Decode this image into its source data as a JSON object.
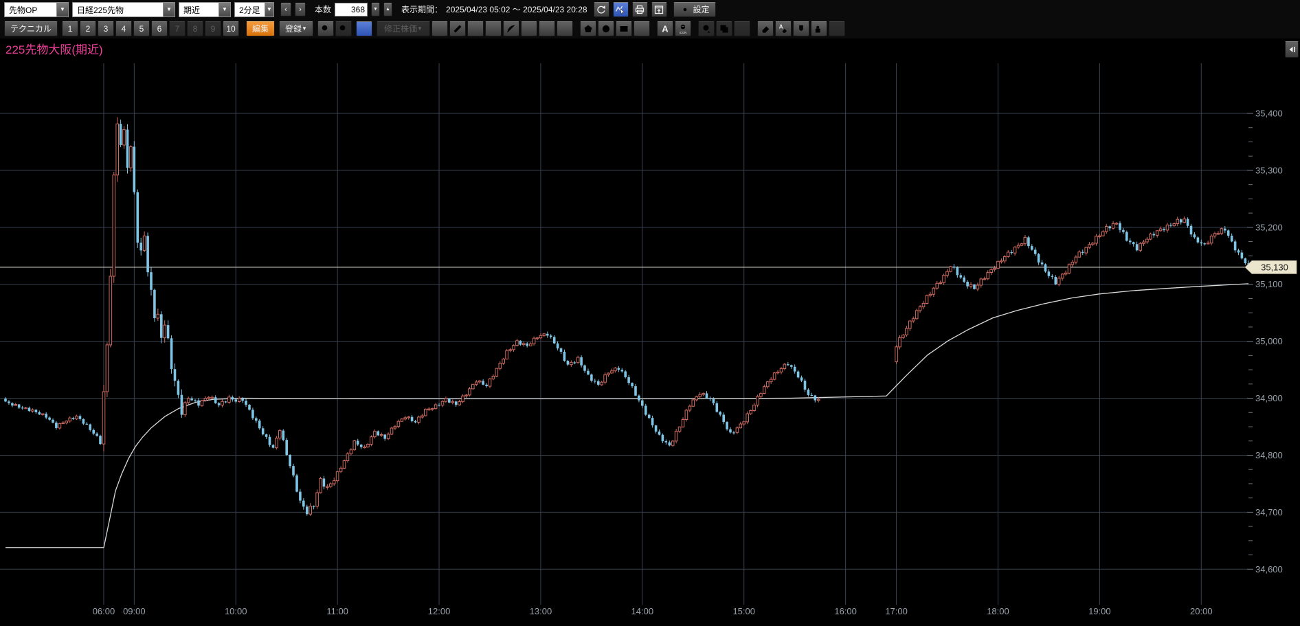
{
  "page": {
    "title": "225先物大阪(期近)"
  },
  "toolbar_top": {
    "dropdowns": [
      {
        "name": "category-dropdown",
        "value": "先物OP"
      },
      {
        "name": "instrument-dropdown",
        "value": "日経225先物"
      },
      {
        "name": "contract-dropdown",
        "value": "期近"
      },
      {
        "name": "timeframe-dropdown",
        "value": "2分足"
      }
    ],
    "prev": "‹",
    "next": "›",
    "bars_label": "本数",
    "bars_value": "368",
    "period_label": "表示期間：",
    "period_value": "2025/04/23 05:02 ～ 2025/04/23 20:28",
    "icons": [
      {
        "name": "undo-icon",
        "active": false
      },
      {
        "name": "chart-cursor-icon",
        "active": true
      },
      {
        "name": "printer-icon",
        "active": false
      },
      {
        "name": "popup-window-icon",
        "active": false
      }
    ],
    "settings_label": "設定"
  },
  "toolbar_tools": {
    "technical_label": "テクニカル",
    "presets": [
      {
        "label": "1",
        "enabled": true
      },
      {
        "label": "2",
        "enabled": true
      },
      {
        "label": "3",
        "enabled": true
      },
      {
        "label": "4",
        "enabled": true
      },
      {
        "label": "5",
        "enabled": true
      },
      {
        "label": "6",
        "enabled": true
      },
      {
        "label": "7",
        "enabled": false
      },
      {
        "label": "8",
        "enabled": false
      },
      {
        "label": "9",
        "enabled": false
      },
      {
        "label": "10",
        "enabled": true
      }
    ],
    "edit_label": "編集",
    "register_label": "登録",
    "zoom_icons": [
      {
        "name": "zoom-in-icon",
        "enabled": true
      },
      {
        "name": "zoom-out-icon",
        "enabled": false
      }
    ],
    "crosshair_name": "crosshair-icon",
    "adjusted_price_label": "修正株価",
    "draw_tools": [
      {
        "name": "trendline-icon",
        "enabled": true,
        "gap": false
      },
      {
        "name": "ruler-icon",
        "enabled": true,
        "gap": false
      },
      {
        "name": "parallel-lines-icon",
        "enabled": true,
        "gap": false
      },
      {
        "name": "multi-lines-icon",
        "enabled": true,
        "gap": false
      },
      {
        "name": "fibonacci-arc-icon",
        "enabled": true,
        "gap": false
      },
      {
        "name": "fibonacci-fan-icon",
        "enabled": true,
        "gap": false
      },
      {
        "name": "time-zones-icon",
        "enabled": true,
        "gap": false
      },
      {
        "name": "speed-lines-icon",
        "enabled": true,
        "gap": false
      },
      {
        "name": "pentagon-icon",
        "enabled": true,
        "gap": true
      },
      {
        "name": "ellipse-icon",
        "enabled": true,
        "gap": false
      },
      {
        "name": "rectangle-icon",
        "enabled": true,
        "gap": false
      },
      {
        "name": "horizontal-line-icon",
        "enabled": true,
        "gap": false
      },
      {
        "name": "text-icon",
        "enabled": true,
        "gap": true
      },
      {
        "name": "emoticon-icon",
        "enabled": true,
        "gap": false
      },
      {
        "name": "history-icon",
        "enabled": false,
        "gap": true
      },
      {
        "name": "copy-icon",
        "enabled": false,
        "gap": false
      },
      {
        "name": "drag-icon",
        "enabled": false,
        "gap": false
      },
      {
        "name": "eraser-icon",
        "enabled": true,
        "gap": true
      },
      {
        "name": "eraser-all-icon",
        "enabled": true,
        "gap": false
      },
      {
        "name": "magnet-icon",
        "enabled": true,
        "gap": false
      },
      {
        "name": "lock-edit-icon",
        "enabled": true,
        "gap": false
      },
      {
        "name": "tool-settings-icon",
        "enabled": false,
        "gap": false
      }
    ]
  },
  "chart_data": {
    "type": "candlestick",
    "title": "225先物大阪(期近)",
    "instrument": "日経225先物 期近",
    "timeframe": "2分足",
    "bars_count": 368,
    "period_start": "2025/04/23 05:02",
    "period_end": "2025/04/23 20:28",
    "current_price": 35130,
    "current_price_label": "35,130",
    "y_axis": {
      "min": 34600,
      "max": 35400,
      "step": 100,
      "minor_step": 25,
      "labels": [
        "35,400",
        "35,300",
        "35,200",
        "35,100",
        "35,000",
        "34,900",
        "34,800",
        "34,700",
        "34,600"
      ]
    },
    "x_axis": {
      "ticks": [
        {
          "label": "06:00",
          "bar": 29
        },
        {
          "label": "09:00",
          "bar": 38
        },
        {
          "label": "10:00",
          "bar": 68
        },
        {
          "label": "11:00",
          "bar": 98
        },
        {
          "label": "12:00",
          "bar": 128
        },
        {
          "label": "13:00",
          "bar": 158
        },
        {
          "label": "14:00",
          "bar": 188
        },
        {
          "label": "15:00",
          "bar": 218
        },
        {
          "label": "16:00",
          "bar": 248
        },
        {
          "label": "17:00",
          "bar": 263
        },
        {
          "label": "18:00",
          "bar": 293
        },
        {
          "label": "19:00",
          "bar": 323
        },
        {
          "label": "20:00",
          "bar": 353
        }
      ]
    },
    "session_gap_bars": [
      241,
      262
    ],
    "close_waypoints": [
      [
        0,
        34893
      ],
      [
        4,
        34885
      ],
      [
        8,
        34878
      ],
      [
        12,
        34868
      ],
      [
        15,
        34850
      ],
      [
        18,
        34861
      ],
      [
        21,
        34868
      ],
      [
        24,
        34852
      ],
      [
        27,
        34832
      ],
      [
        28,
        34822
      ],
      [
        29,
        34906
      ],
      [
        30,
        34992
      ],
      [
        31,
        35122
      ],
      [
        32,
        35282
      ],
      [
        33,
        35388
      ],
      [
        34,
        35345
      ],
      [
        35,
        35366
      ],
      [
        36,
        35312
      ],
      [
        37,
        35336
      ],
      [
        38,
        35262
      ],
      [
        39,
        35178
      ],
      [
        40,
        35152
      ],
      [
        41,
        35191
      ],
      [
        42,
        35120
      ],
      [
        43,
        35086
      ],
      [
        44,
        35048
      ],
      [
        45,
        35041
      ],
      [
        46,
        35008
      ],
      [
        47,
        35032
      ],
      [
        48,
        34998
      ],
      [
        49,
        34958
      ],
      [
        50,
        34928
      ],
      [
        51,
        34903
      ],
      [
        52,
        34878
      ],
      [
        54,
        34901
      ],
      [
        57,
        34890
      ],
      [
        60,
        34904
      ],
      [
        63,
        34888
      ],
      [
        66,
        34900
      ],
      [
        68,
        34896
      ],
      [
        70,
        34898
      ],
      [
        73,
        34868
      ],
      [
        76,
        34838
      ],
      [
        79,
        34812
      ],
      [
        81,
        34846
      ],
      [
        83,
        34802
      ],
      [
        85,
        34762
      ],
      [
        87,
        34718
      ],
      [
        89,
        34700
      ],
      [
        91,
        34713
      ],
      [
        93,
        34756
      ],
      [
        95,
        34742
      ],
      [
        97,
        34758
      ],
      [
        100,
        34790
      ],
      [
        103,
        34823
      ],
      [
        106,
        34812
      ],
      [
        109,
        34841
      ],
      [
        112,
        34830
      ],
      [
        115,
        34853
      ],
      [
        118,
        34868
      ],
      [
        121,
        34858
      ],
      [
        124,
        34879
      ],
      [
        127,
        34886
      ],
      [
        130,
        34898
      ],
      [
        133,
        34889
      ],
      [
        136,
        34908
      ],
      [
        139,
        34931
      ],
      [
        142,
        34922
      ],
      [
        145,
        34951
      ],
      [
        148,
        34981
      ],
      [
        151,
        34999
      ],
      [
        154,
        34992
      ],
      [
        157,
        35008
      ],
      [
        160,
        35013
      ],
      [
        163,
        34989
      ],
      [
        166,
        34958
      ],
      [
        169,
        34969
      ],
      [
        172,
        34939
      ],
      [
        175,
        34923
      ],
      [
        178,
        34946
      ],
      [
        181,
        34953
      ],
      [
        184,
        34929
      ],
      [
        187,
        34896
      ],
      [
        190,
        34863
      ],
      [
        193,
        34833
      ],
      [
        196,
        34816
      ],
      [
        199,
        34851
      ],
      [
        202,
        34889
      ],
      [
        205,
        34909
      ],
      [
        208,
        34899
      ],
      [
        211,
        34869
      ],
      [
        214,
        34837
      ],
      [
        217,
        34853
      ],
      [
        220,
        34879
      ],
      [
        223,
        34911
      ],
      [
        226,
        34936
      ],
      [
        229,
        34953
      ],
      [
        231,
        34961
      ],
      [
        234,
        34939
      ],
      [
        237,
        34906
      ],
      [
        240,
        34896
      ],
      [
        263,
        34993
      ],
      [
        265,
        35013
      ],
      [
        268,
        35043
      ],
      [
        271,
        35069
      ],
      [
        274,
        35093
      ],
      [
        277,
        35113
      ],
      [
        279,
        35133
      ],
      [
        281,
        35119
      ],
      [
        283,
        35103
      ],
      [
        286,
        35093
      ],
      [
        289,
        35113
      ],
      [
        292,
        35131
      ],
      [
        295,
        35149
      ],
      [
        298,
        35163
      ],
      [
        301,
        35179
      ],
      [
        304,
        35151
      ],
      [
        307,
        35123
      ],
      [
        310,
        35103
      ],
      [
        313,
        35123
      ],
      [
        316,
        35149
      ],
      [
        319,
        35163
      ],
      [
        322,
        35181
      ],
      [
        325,
        35199
      ],
      [
        328,
        35207
      ],
      [
        331,
        35179
      ],
      [
        334,
        35163
      ],
      [
        337,
        35181
      ],
      [
        340,
        35193
      ],
      [
        343,
        35201
      ],
      [
        346,
        35211
      ],
      [
        348,
        35213
      ],
      [
        351,
        35179
      ],
      [
        354,
        35169
      ],
      [
        357,
        35189
      ],
      [
        360,
        35197
      ],
      [
        362,
        35173
      ],
      [
        364,
        35153
      ],
      [
        366,
        35139
      ],
      [
        367,
        35131
      ]
    ],
    "volatility_segments": [
      [
        0,
        28,
        6
      ],
      [
        29,
        33,
        26
      ],
      [
        34,
        52,
        20
      ],
      [
        53,
        85,
        8
      ],
      [
        86,
        97,
        11
      ],
      [
        98,
        157,
        7
      ],
      [
        158,
        240,
        8
      ],
      [
        263,
        367,
        9
      ]
    ],
    "ma_line": [
      [
        8,
        34638
      ],
      [
        151,
        34638
      ],
      [
        160,
        34690
      ],
      [
        168,
        34737
      ],
      [
        177,
        34767
      ],
      [
        187,
        34794
      ],
      [
        197,
        34815
      ],
      [
        207,
        34831
      ],
      [
        220,
        34848
      ],
      [
        240,
        34868
      ],
      [
        260,
        34882
      ],
      [
        285,
        34893
      ],
      [
        310,
        34898
      ],
      [
        350,
        34900
      ],
      [
        600,
        34899
      ],
      [
        900,
        34899
      ],
      [
        1150,
        34900
      ],
      [
        1290,
        34904
      ],
      [
        1320,
        34941
      ],
      [
        1350,
        34976
      ],
      [
        1380,
        35001
      ],
      [
        1410,
        35021
      ],
      [
        1445,
        35041
      ],
      [
        1480,
        35054
      ],
      [
        1520,
        35066
      ],
      [
        1560,
        35076
      ],
      [
        1600,
        35083
      ],
      [
        1650,
        35089
      ],
      [
        1700,
        35093
      ],
      [
        1740,
        35096
      ],
      [
        1817,
        35101
      ]
    ],
    "colors": {
      "up": "#cf6b61",
      "down": "#7fc6e6",
      "grid": "#3a4350",
      "ma": "#d9d9d9",
      "price_line": "#f0f0e6",
      "tag_bg": "#ece5cd",
      "tag_text": "#1b1b1b",
      "axis_text": "#9aa2ac",
      "background": "#000000",
      "title": "#ee3f9b"
    }
  }
}
